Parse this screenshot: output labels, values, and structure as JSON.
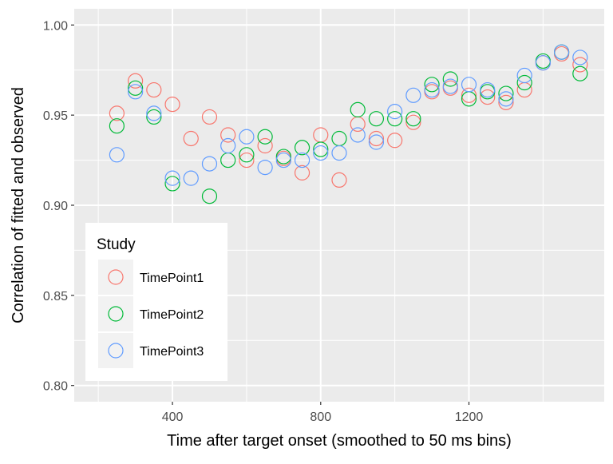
{
  "chart_data": {
    "type": "scatter",
    "title": "",
    "xlabel": "Time after target onset (smoothed to 50 ms bins)",
    "ylabel": "Correlation of fitted and observed",
    "xlim": [
      200,
      1500
    ],
    "ylim": [
      0.8,
      1.0
    ],
    "x_ticks": [
      400,
      800,
      1200
    ],
    "x_tick_labels": [
      "400",
      "800",
      "1200"
    ],
    "y_ticks": [
      0.8,
      0.85,
      0.9,
      0.95,
      1.0
    ],
    "y_tick_labels": [
      "0.80",
      "0.85",
      "0.90",
      "0.95",
      "1.00"
    ],
    "grid": true,
    "legend": {
      "title": "Study",
      "position": "bottom-left"
    },
    "series": [
      {
        "name": "TimePoint1",
        "color": "#F8766D",
        "x": [
          250,
          300,
          350,
          400,
          450,
          500,
          550,
          600,
          650,
          700,
          750,
          800,
          850,
          900,
          950,
          1000,
          1050,
          1100,
          1150,
          1200,
          1250,
          1300,
          1350,
          1400,
          1450,
          1500
        ],
        "y": [
          0.951,
          0.969,
          0.964,
          0.956,
          0.937,
          0.949,
          0.939,
          0.925,
          0.933,
          0.926,
          0.918,
          0.939,
          0.914,
          0.945,
          0.937,
          0.936,
          0.946,
          0.963,
          0.965,
          0.961,
          0.96,
          0.957,
          0.964,
          0.979,
          0.984,
          0.978
        ]
      },
      {
        "name": "TimePoint2",
        "color": "#00BA38",
        "x": [
          250,
          300,
          350,
          400,
          450,
          500,
          550,
          600,
          650,
          700,
          750,
          800,
          850,
          900,
          950,
          1000,
          1050,
          1100,
          1150,
          1200,
          1250,
          1300,
          1350,
          1400,
          1450,
          1500
        ],
        "y": [
          0.944,
          0.965,
          0.949,
          0.912,
          0.886,
          0.905,
          0.925,
          0.928,
          0.938,
          0.927,
          0.932,
          0.931,
          0.937,
          0.953,
          0.948,
          0.948,
          0.948,
          0.967,
          0.97,
          0.959,
          0.963,
          0.962,
          0.968,
          0.98,
          0.985,
          0.973
        ]
      },
      {
        "name": "TimePoint3",
        "color": "#619CFF",
        "x": [
          250,
          300,
          350,
          400,
          450,
          500,
          550,
          600,
          650,
          700,
          750,
          800,
          850,
          900,
          950,
          1000,
          1050,
          1100,
          1150,
          1200,
          1250,
          1300,
          1350,
          1400,
          1450,
          1500
        ],
        "y": [
          0.928,
          0.963,
          0.951,
          0.915,
          0.915,
          0.923,
          0.933,
          0.938,
          0.921,
          0.925,
          0.925,
          0.929,
          0.929,
          0.939,
          0.935,
          0.952,
          0.961,
          0.964,
          0.966,
          0.967,
          0.964,
          0.959,
          0.972,
          0.979,
          0.985,
          0.982
        ]
      }
    ]
  }
}
